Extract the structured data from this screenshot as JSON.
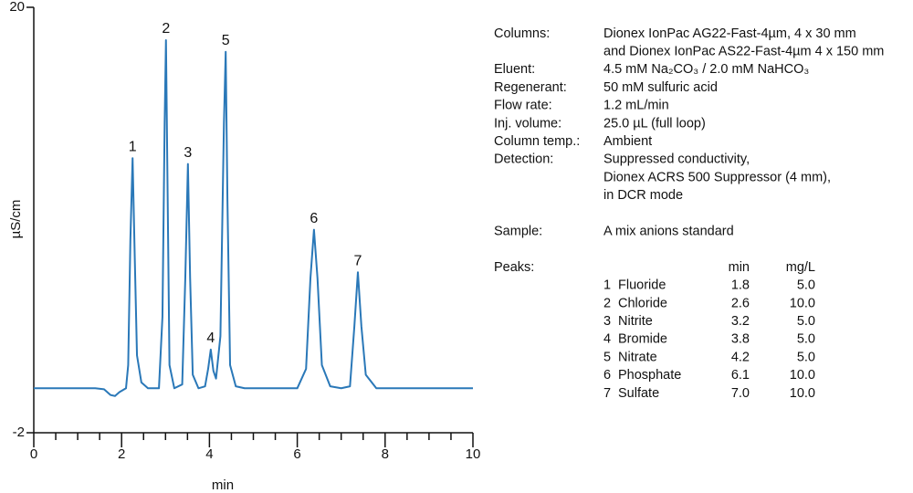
{
  "chart_data": {
    "type": "line",
    "ylabel": "µS/cm",
    "xlabel": "min",
    "xlim": [
      0,
      10
    ],
    "xticks": [
      0,
      2,
      4,
      6,
      8,
      10
    ],
    "ylim": [
      -2,
      20
    ],
    "yticks": [
      -2,
      20
    ],
    "annotations": [
      "1",
      "2",
      "3",
      "4",
      "5",
      "6",
      "7"
    ],
    "x": [
      0,
      1.4,
      1.6,
      1.75,
      1.85,
      1.95,
      2.1,
      2.15,
      2.2,
      2.25,
      2.3,
      2.35,
      2.45,
      2.6,
      2.85,
      2.93,
      2.98,
      3.01,
      3.04,
      3.09,
      3.2,
      3.38,
      3.45,
      3.51,
      3.56,
      3.62,
      3.75,
      3.9,
      3.97,
      4.03,
      4.09,
      4.15,
      4.25,
      4.33,
      4.37,
      4.41,
      4.47,
      4.6,
      4.8,
      6.0,
      6.2,
      6.3,
      6.38,
      6.46,
      6.56,
      6.75,
      7.0,
      7.2,
      7.3,
      7.38,
      7.46,
      7.56,
      7.8,
      10
    ],
    "series": [
      {
        "color": "#2a78b8",
        "values": [
          0.3,
          0.3,
          0.25,
          -0.05,
          -0.1,
          0.1,
          0.3,
          1.5,
          8,
          12.2,
          7,
          2,
          0.6,
          0.3,
          0.3,
          4,
          14,
          18.3,
          12,
          1.5,
          0.3,
          0.5,
          6,
          11.9,
          6,
          1,
          0.3,
          0.4,
          1.3,
          2.3,
          1.2,
          0.8,
          3,
          14,
          17.7,
          10,
          1.5,
          0.4,
          0.3,
          0.3,
          1.3,
          6,
          8.5,
          6,
          1.5,
          0.4,
          0.3,
          0.4,
          3.5,
          6.3,
          3.5,
          1,
          0.3,
          0.3
        ]
      }
    ]
  },
  "info": {
    "conditions": [
      {
        "label": "Columns:",
        "lines": [
          "Dionex IonPac AG22-Fast-4µm, 4 x 30 mm",
          "and Dionex IonPac AS22-Fast-4µm 4 x 150 mm"
        ]
      },
      {
        "label": "Eluent:",
        "lines": [
          "4.5 mM Na₂CO₃ / 2.0 mM NaHCO₃"
        ]
      },
      {
        "label": "Regenerant:",
        "lines": [
          "50 mM sulfuric acid"
        ]
      },
      {
        "label": "Flow rate:",
        "lines": [
          "1.2 mL/min"
        ]
      },
      {
        "label": "Inj. volume:",
        "lines": [
          "25.0 µL (full loop)"
        ]
      },
      {
        "label": "Column temp.:",
        "lines": [
          "Ambient"
        ]
      },
      {
        "label": "Detection:",
        "lines": [
          "Suppressed conductivity,",
          "Dionex ACRS 500 Suppressor (4 mm),",
          "in DCR mode"
        ]
      }
    ],
    "sample": {
      "label": "Sample:",
      "value": "A mix anions standard"
    },
    "peaks": {
      "label": "Peaks:",
      "header": [
        "min",
        "mg/L"
      ],
      "rows": [
        [
          "1",
          "Fluoride",
          "1.8",
          "5.0"
        ],
        [
          "2",
          "Chloride",
          "2.6",
          "10.0"
        ],
        [
          "3",
          "Nitrite",
          "3.2",
          "5.0"
        ],
        [
          "4",
          "Bromide",
          "3.8",
          "5.0"
        ],
        [
          "5",
          "Nitrate",
          "4.2",
          "5.0"
        ],
        [
          "6",
          "Phosphate",
          "6.1",
          "10.0"
        ],
        [
          "7",
          "Sulfate",
          "7.0",
          "10.0"
        ]
      ]
    }
  }
}
